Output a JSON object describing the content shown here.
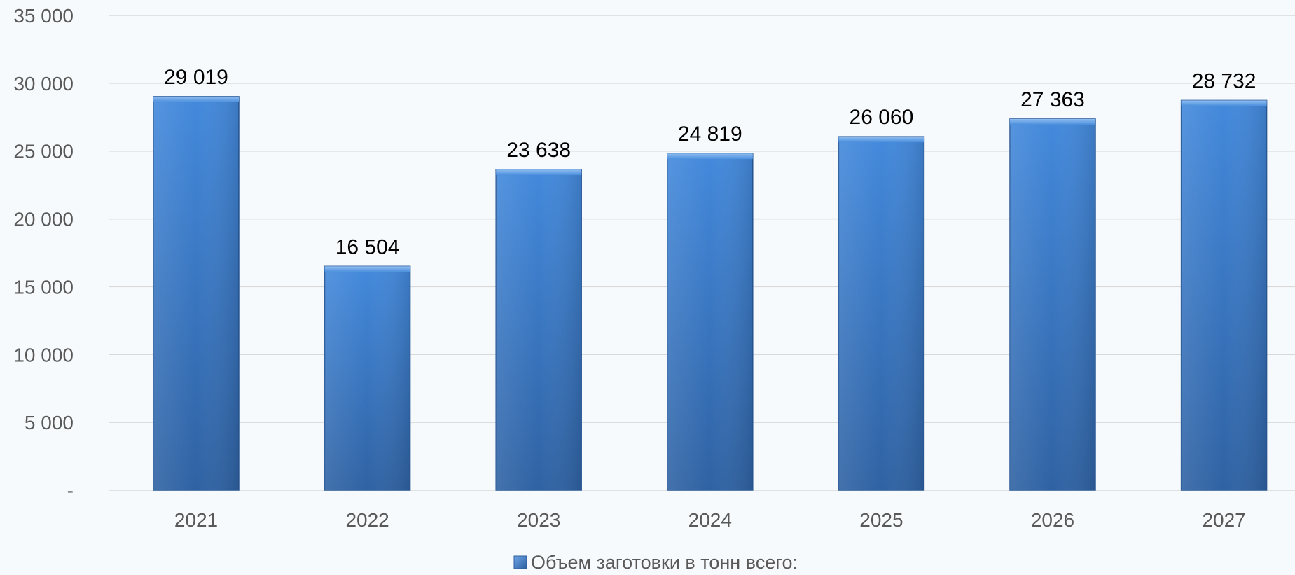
{
  "chart_data": {
    "type": "bar",
    "categories": [
      "2021",
      "2022",
      "2023",
      "2024",
      "2025",
      "2026",
      "2027"
    ],
    "series": [
      {
        "name": "Объем заготовки в тонн всего:",
        "values": [
          29019,
          16504,
          23638,
          24819,
          26060,
          27363,
          28732
        ],
        "data_labels": [
          "29 019",
          "16 504",
          "23 638",
          "24 819",
          "26 060",
          "27 363",
          "28 732"
        ]
      }
    ],
    "ylim": [
      0,
      35000
    ],
    "yticks": [
      {
        "value": 0,
        "label": "-"
      },
      {
        "value": 5000,
        "label": "5 000"
      },
      {
        "value": 10000,
        "label": "10 000"
      },
      {
        "value": 15000,
        "label": "15 000"
      },
      {
        "value": 20000,
        "label": "20 000"
      },
      {
        "value": 25000,
        "label": "25 000"
      },
      {
        "value": 30000,
        "label": "30 000"
      },
      {
        "value": 35000,
        "label": "35 000"
      }
    ],
    "grid": true,
    "legend_position": "bottom-center",
    "bar_color": "#3f7ecb",
    "bar_color_dark": "#2c5e9f"
  }
}
